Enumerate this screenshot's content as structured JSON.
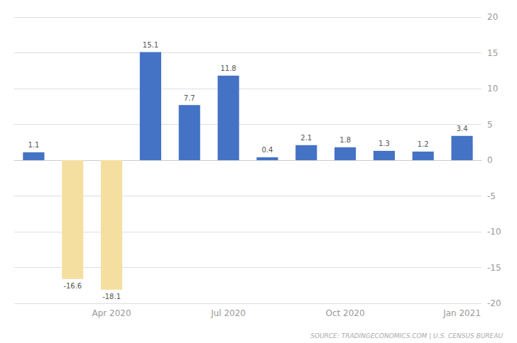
{
  "chart_data": {
    "type": "bar",
    "categories": [
      null,
      null,
      "Apr 2020",
      null,
      null,
      "Jul 2020",
      null,
      null,
      "Oct 2020",
      null,
      null,
      "Jan 2021"
    ],
    "values": [
      1.1,
      -16.6,
      -18.1,
      15.1,
      7.7,
      11.8,
      0.4,
      2.1,
      1.8,
      1.3,
      1.2,
      3.4
    ],
    "colors": [
      "#4472c4",
      "#f5dfa0",
      "#f5dfa0",
      "#4472c4",
      "#4472c4",
      "#4472c4",
      "#4472c4",
      "#4472c4",
      "#4472c4",
      "#4472c4",
      "#4472c4",
      "#4472c4"
    ],
    "ylim": [
      -20,
      20
    ],
    "yticks": [
      -20,
      -15,
      -10,
      -5,
      0,
      5,
      10,
      15,
      20
    ],
    "grid": true,
    "data_labels": true,
    "annotations": [
      "SOURCE: TRADINGECONOMICS.COM | U.S. CENSUS BUREAU"
    ]
  }
}
